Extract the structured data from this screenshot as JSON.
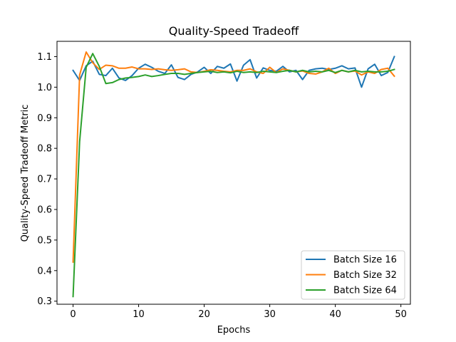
{
  "chart_data": {
    "type": "line",
    "title": "Quality-Speed Tradeoff",
    "xlabel": "Epochs",
    "ylabel": "Quality-Speed Tradeoff Metric",
    "xlim": [
      -2.45,
      51.45
    ],
    "ylim": [
      0.29,
      1.15
    ],
    "xticks": [
      0,
      10,
      20,
      30,
      40,
      50
    ],
    "yticks": [
      0.3,
      0.4,
      0.5,
      0.6,
      0.7,
      0.8,
      0.9,
      1.0,
      1.1
    ],
    "ytick_labels": [
      "0.3",
      "0.4",
      "0.5",
      "0.6",
      "0.7",
      "0.8",
      "0.9",
      "1.0",
      "1.1"
    ],
    "xtick_labels": [
      "0",
      "10",
      "20",
      "30",
      "40",
      "50"
    ],
    "grid": false,
    "legend_position": "lower-right",
    "x": [
      0,
      1,
      2,
      3,
      4,
      5,
      6,
      7,
      8,
      9,
      10,
      11,
      12,
      13,
      14,
      15,
      16,
      17,
      18,
      19,
      20,
      21,
      22,
      23,
      24,
      25,
      26,
      27,
      28,
      29,
      30,
      31,
      32,
      33,
      34,
      35,
      36,
      37,
      38,
      39,
      40,
      41,
      42,
      43,
      44,
      45,
      46,
      47,
      48,
      49
    ],
    "series": [
      {
        "name": "Batch Size 16",
        "color": "#1f77b4",
        "values": [
          1.055,
          1.022,
          1.07,
          1.085,
          1.042,
          1.038,
          1.062,
          1.03,
          1.022,
          1.038,
          1.062,
          1.075,
          1.065,
          1.052,
          1.045,
          1.073,
          1.032,
          1.025,
          1.042,
          1.05,
          1.065,
          1.045,
          1.068,
          1.062,
          1.076,
          1.02,
          1.072,
          1.09,
          1.03,
          1.063,
          1.055,
          1.052,
          1.068,
          1.05,
          1.055,
          1.025,
          1.055,
          1.06,
          1.062,
          1.058,
          1.062,
          1.07,
          1.06,
          1.063,
          1.0,
          1.06,
          1.075,
          1.038,
          1.048,
          1.1
        ]
      },
      {
        "name": "Batch Size 32",
        "color": "#ff7f0e",
        "values": [
          0.428,
          1.04,
          1.115,
          1.08,
          1.058,
          1.072,
          1.07,
          1.062,
          1.062,
          1.066,
          1.06,
          1.06,
          1.058,
          1.06,
          1.057,
          1.055,
          1.057,
          1.06,
          1.05,
          1.048,
          1.052,
          1.057,
          1.055,
          1.052,
          1.05,
          1.055,
          1.055,
          1.06,
          1.05,
          1.045,
          1.065,
          1.048,
          1.06,
          1.055,
          1.05,
          1.053,
          1.045,
          1.043,
          1.05,
          1.062,
          1.045,
          1.055,
          1.05,
          1.053,
          1.04,
          1.05,
          1.045,
          1.058,
          1.062,
          1.036
        ]
      },
      {
        "name": "Batch Size 64",
        "color": "#2ca02c",
        "values": [
          0.315,
          0.822,
          1.065,
          1.11,
          1.068,
          1.012,
          1.015,
          1.025,
          1.03,
          1.032,
          1.035,
          1.04,
          1.035,
          1.038,
          1.042,
          1.045,
          1.045,
          1.042,
          1.045,
          1.048,
          1.05,
          1.052,
          1.048,
          1.05,
          1.047,
          1.052,
          1.048,
          1.05,
          1.048,
          1.052,
          1.05,
          1.048,
          1.052,
          1.055,
          1.05,
          1.055,
          1.05,
          1.052,
          1.05,
          1.055,
          1.048,
          1.055,
          1.05,
          1.055,
          1.05,
          1.052,
          1.05,
          1.05,
          1.052,
          1.058
        ]
      }
    ]
  }
}
